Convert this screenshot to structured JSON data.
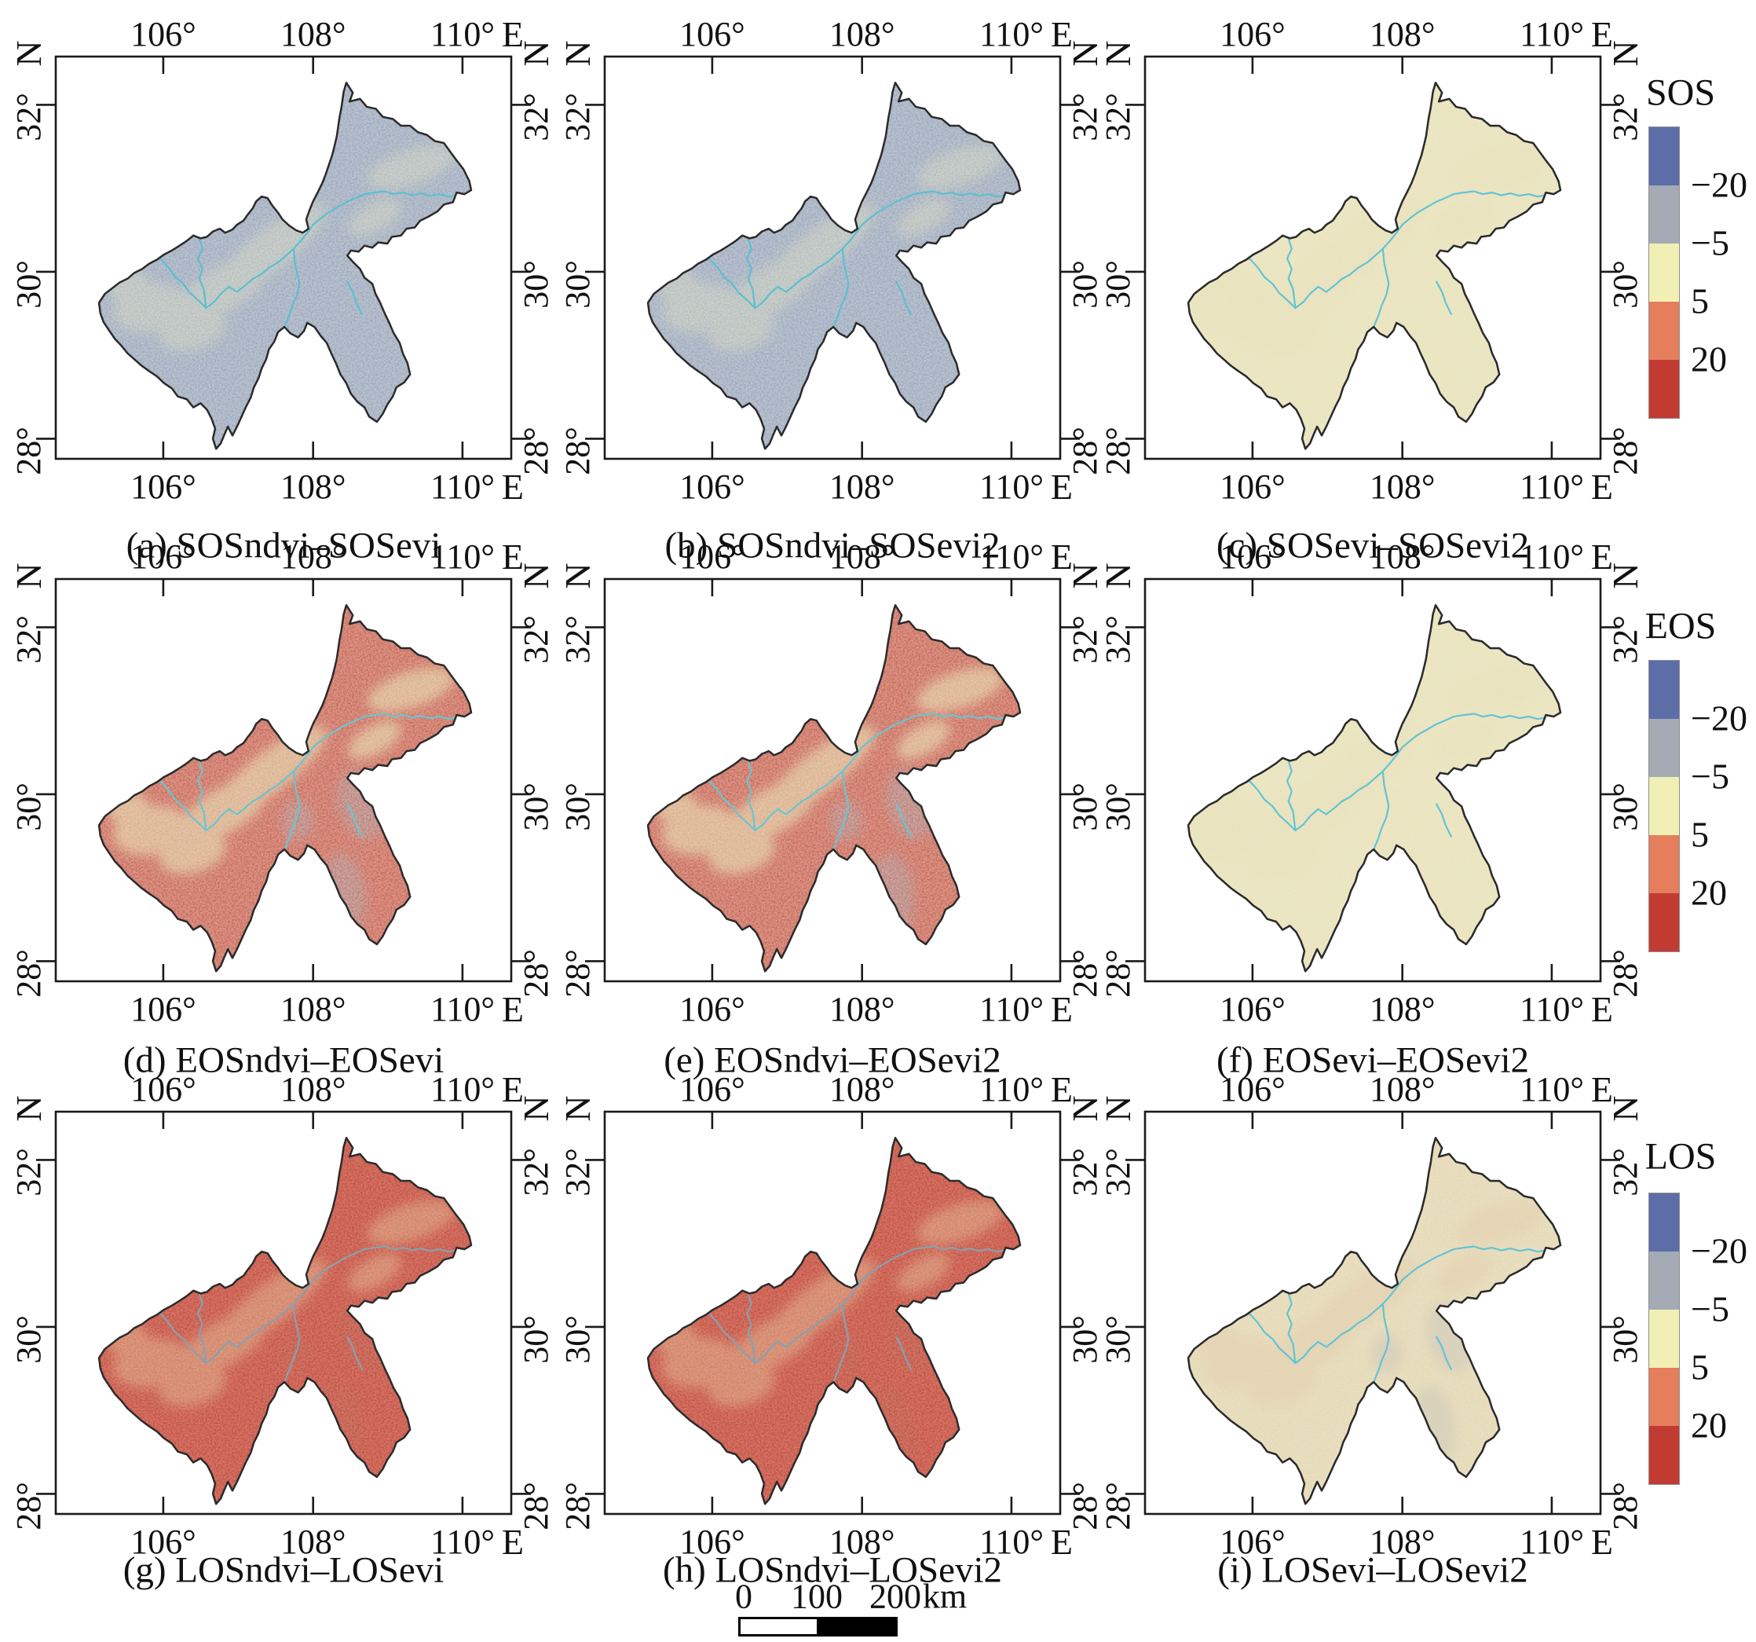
{
  "figure": {
    "axes": {
      "north_label": "N",
      "east_label": "E",
      "lon_ticks": [
        "106°",
        "108°",
        "110°"
      ],
      "lat_ticks": [
        "32°",
        "30°",
        "28°"
      ]
    },
    "panels": [
      {
        "id": "a",
        "caption": "(a) SOSndvi–SOSevi",
        "group": "SOS",
        "palette": "diff_blue"
      },
      {
        "id": "b",
        "caption": "(b) SOSndvi–SOSevi2",
        "group": "SOS",
        "palette": "diff_blue"
      },
      {
        "id": "c",
        "caption": "(c) SOSevi–SOSevi2",
        "group": "SOS",
        "palette": "diff_yellow"
      },
      {
        "id": "d",
        "caption": "(d) EOSndvi–EOSevi",
        "group": "EOS",
        "palette": "diff_red"
      },
      {
        "id": "e",
        "caption": "(e) EOSndvi–EOSevi2",
        "group": "EOS",
        "palette": "diff_red"
      },
      {
        "id": "f",
        "caption": "(f) EOSevi–EOSevi2",
        "group": "EOS",
        "palette": "diff_yellow"
      },
      {
        "id": "g",
        "caption": "(g) LOSndvi–LOSevi",
        "group": "LOS",
        "palette": "diff_red_deep"
      },
      {
        "id": "h",
        "caption": "(h) LOSndvi–LOSevi2",
        "group": "LOS",
        "palette": "diff_red_deep"
      },
      {
        "id": "i",
        "caption": "(i) LOSevi–LOSevi2",
        "group": "LOS",
        "palette": "diff_yellow_warm"
      }
    ],
    "palettes": {
      "diff_blue": {
        "base": "#95a1b7",
        "patch": "#ece6ae",
        "patch_op": 0.5,
        "noise1": "#efe9b2",
        "noise1_op": 0.5,
        "noise2": "#5d72a8",
        "noise2_op": 0.5,
        "dark_op": 0.0,
        "river": "#5bc0d0"
      },
      "diff_yellow": {
        "base": "#f0edbb",
        "patch": "#e6d6a2",
        "patch_op": 0.12,
        "noise1": "#dca88e",
        "noise1_op": 0.28,
        "noise2": "#a3aab8",
        "noise2_op": 0.25,
        "dark_op": 0.0,
        "river": "#62c3d6"
      },
      "diff_yellow_warm": {
        "base": "#efe9b8",
        "patch": "#e0b288",
        "patch_op": 0.22,
        "noise1": "#d8906e",
        "noise1_op": 0.38,
        "noise2": "#96a0b2",
        "noise2_op": 0.3,
        "dark_op": 0.25,
        "river": "#62c3d6"
      },
      "diff_red": {
        "base": "#cc4a3a",
        "patch": "#eee3a6",
        "patch_op": 0.62,
        "noise1": "#f2d592",
        "noise1_op": 0.4,
        "noise2": "#8e9ab0",
        "noise2_op": 0.3,
        "dark_op": 0.4,
        "river": "#6ac4d2"
      },
      "diff_red_deep": {
        "base": "#c2392f",
        "patch": "#e9d9a2",
        "patch_op": 0.42,
        "noise1": "#edcf8e",
        "noise1_op": 0.3,
        "noise2": "#a84a3e",
        "noise2_op": 0.35,
        "dark_op": 0.25,
        "river": "#87a0b2"
      }
    },
    "colorbars": [
      {
        "title": "SOS",
        "tick_labels": [
          "−20",
          "−5",
          "5",
          "20"
        ],
        "segment_colors": [
          "#5c6da8",
          "#a5abb5",
          "#f2efb4",
          "#e57e5d",
          "#c23b33"
        ]
      },
      {
        "title": "EOS",
        "tick_labels": [
          "−20",
          "−5",
          "5",
          "20"
        ],
        "segment_colors": [
          "#5c6da8",
          "#a5abb5",
          "#f2efb4",
          "#e57e5d",
          "#c23b33"
        ]
      },
      {
        "title": "LOS",
        "tick_labels": [
          "−20",
          "−5",
          "5",
          "20"
        ],
        "segment_colors": [
          "#5c6da8",
          "#a5abb5",
          "#f2efb4",
          "#e57e5d",
          "#c23b33"
        ]
      }
    ],
    "scalebar": {
      "tick_labels": [
        "0",
        "100",
        "200"
      ],
      "unit": "km"
    }
  }
}
